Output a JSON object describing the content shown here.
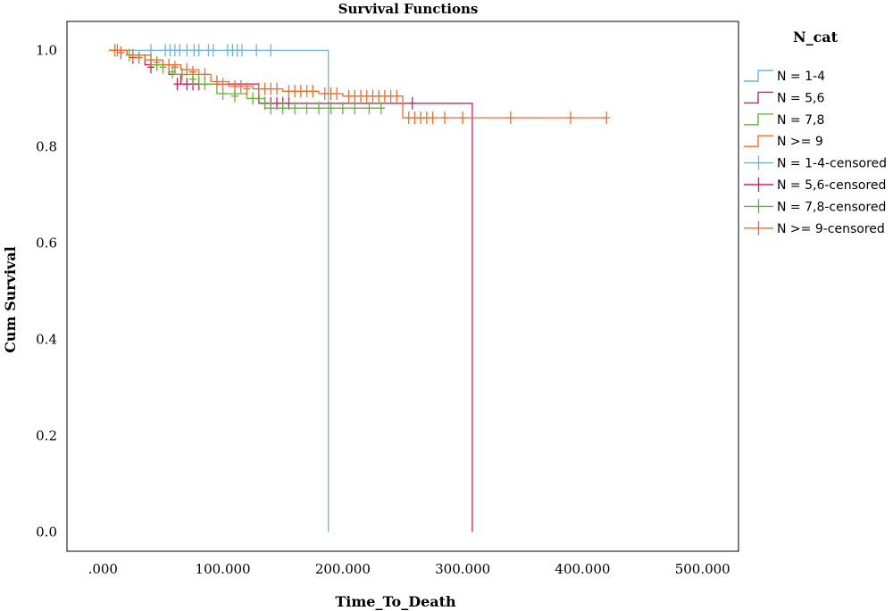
{
  "chart_data": {
    "type": "line",
    "title": "Survival Functions",
    "xlabel": "Time_To_Death",
    "ylabel": "Cum Survival",
    "xlim": [
      -30000,
      530000
    ],
    "ylim": [
      -0.04,
      1.06
    ],
    "x_ticks": [
      0,
      100000,
      200000,
      300000,
      400000,
      500000
    ],
    "x_tick_labels": [
      ".000",
      "100.000",
      "200.000",
      "300.000",
      "400.000",
      "500.000"
    ],
    "y_ticks": [
      0.0,
      0.2,
      0.4,
      0.6,
      0.8,
      1.0
    ],
    "y_tick_labels": [
      "0.0",
      "0.2",
      "0.4",
      "0.6",
      "0.8",
      "1.0"
    ],
    "grid": false,
    "legend_title": "N_cat",
    "legend_position": "right",
    "series": [
      {
        "name": "N = 1-4",
        "color": "#6fb2e0",
        "steps": [
          [
            5000,
            1.0
          ],
          [
            188000,
            1.0
          ],
          [
            188000,
            0.0
          ]
        ],
        "censored": [
          [
            40000,
            1.0
          ],
          [
            52000,
            1.0
          ],
          [
            56000,
            1.0
          ],
          [
            60000,
            1.0
          ],
          [
            64000,
            1.0
          ],
          [
            70000,
            1.0
          ],
          [
            76000,
            1.0
          ],
          [
            80000,
            1.0
          ],
          [
            88000,
            1.0
          ],
          [
            92000,
            1.0
          ],
          [
            104000,
            1.0
          ],
          [
            108000,
            1.0
          ],
          [
            112000,
            1.0
          ],
          [
            116000,
            1.0
          ],
          [
            128000,
            1.0
          ],
          [
            140000,
            1.0
          ]
        ]
      },
      {
        "name": "N = 5,6",
        "color": "#d2205c",
        "steps": [
          [
            5000,
            1.0
          ],
          [
            20000,
            0.99
          ],
          [
            35000,
            0.97
          ],
          [
            55000,
            0.95
          ],
          [
            65000,
            0.93
          ],
          [
            130000,
            0.93
          ],
          [
            130000,
            0.89
          ],
          [
            255000,
            0.89
          ],
          [
            255000,
            0.89
          ],
          [
            308000,
            0.89
          ],
          [
            308000,
            0.0
          ]
        ],
        "censored": [
          [
            15000,
            0.995
          ],
          [
            25000,
            0.985
          ],
          [
            40000,
            0.965
          ],
          [
            62000,
            0.93
          ],
          [
            70000,
            0.93
          ],
          [
            75000,
            0.93
          ],
          [
            80000,
            0.93
          ],
          [
            135000,
            0.89
          ],
          [
            140000,
            0.89
          ],
          [
            145000,
            0.89
          ],
          [
            150000,
            0.89
          ],
          [
            155000,
            0.89
          ],
          [
            258000,
            0.89
          ]
        ]
      },
      {
        "name": "N = 7,8",
        "color": "#5cbd2c",
        "steps": [
          [
            5000,
            1.0
          ],
          [
            20000,
            0.99
          ],
          [
            40000,
            0.97
          ],
          [
            60000,
            0.95
          ],
          [
            80000,
            0.93
          ],
          [
            95000,
            0.91
          ],
          [
            120000,
            0.9
          ],
          [
            135000,
            0.88
          ],
          [
            235000,
            0.88
          ]
        ],
        "censored": [
          [
            12000,
            1.0
          ],
          [
            22000,
            0.99
          ],
          [
            30000,
            0.985
          ],
          [
            45000,
            0.97
          ],
          [
            50000,
            0.965
          ],
          [
            58000,
            0.955
          ],
          [
            66000,
            0.95
          ],
          [
            75000,
            0.94
          ],
          [
            85000,
            0.93
          ],
          [
            100000,
            0.91
          ],
          [
            110000,
            0.905
          ],
          [
            125000,
            0.9
          ],
          [
            140000,
            0.88
          ],
          [
            150000,
            0.88
          ],
          [
            160000,
            0.88
          ],
          [
            170000,
            0.88
          ],
          [
            180000,
            0.88
          ],
          [
            190000,
            0.88
          ],
          [
            200000,
            0.88
          ],
          [
            210000,
            0.88
          ],
          [
            222000,
            0.88
          ],
          [
            232000,
            0.88
          ]
        ]
      },
      {
        "name": "N >= 9",
        "color": "#f26d2b",
        "steps": [
          [
            5000,
            1.0
          ],
          [
            20000,
            0.99
          ],
          [
            35000,
            0.98
          ],
          [
            50000,
            0.97
          ],
          [
            65000,
            0.96
          ],
          [
            80000,
            0.95
          ],
          [
            90000,
            0.935
          ],
          [
            105000,
            0.925
          ],
          [
            125000,
            0.92
          ],
          [
            150000,
            0.915
          ],
          [
            180000,
            0.91
          ],
          [
            200000,
            0.905
          ],
          [
            250000,
            0.905
          ],
          [
            250000,
            0.86
          ],
          [
            420000,
            0.86
          ]
        ],
        "censored": [
          [
            10000,
            1.0
          ],
          [
            15000,
            0.995
          ],
          [
            25000,
            0.99
          ],
          [
            30000,
            0.985
          ],
          [
            40000,
            0.98
          ],
          [
            45000,
            0.975
          ],
          [
            55000,
            0.97
          ],
          [
            60000,
            0.965
          ],
          [
            70000,
            0.96
          ],
          [
            75000,
            0.955
          ],
          [
            85000,
            0.95
          ],
          [
            95000,
            0.935
          ],
          [
            100000,
            0.93
          ],
          [
            110000,
            0.925
          ],
          [
            115000,
            0.925
          ],
          [
            120000,
            0.92
          ],
          [
            130000,
            0.92
          ],
          [
            135000,
            0.92
          ],
          [
            140000,
            0.92
          ],
          [
            145000,
            0.92
          ],
          [
            155000,
            0.915
          ],
          [
            160000,
            0.915
          ],
          [
            165000,
            0.915
          ],
          [
            170000,
            0.915
          ],
          [
            175000,
            0.915
          ],
          [
            185000,
            0.91
          ],
          [
            190000,
            0.91
          ],
          [
            195000,
            0.91
          ],
          [
            205000,
            0.905
          ],
          [
            210000,
            0.905
          ],
          [
            215000,
            0.905
          ],
          [
            220000,
            0.905
          ],
          [
            225000,
            0.905
          ],
          [
            230000,
            0.905
          ],
          [
            235000,
            0.905
          ],
          [
            240000,
            0.905
          ],
          [
            245000,
            0.905
          ],
          [
            255000,
            0.86
          ],
          [
            260000,
            0.86
          ],
          [
            265000,
            0.86
          ],
          [
            270000,
            0.86
          ],
          [
            275000,
            0.86
          ],
          [
            285000,
            0.86
          ],
          [
            300000,
            0.86
          ],
          [
            340000,
            0.86
          ],
          [
            390000,
            0.86
          ],
          [
            420000,
            0.86
          ]
        ]
      },
      {
        "name": "N = 1-4-censored",
        "color": "#6fb2e0",
        "marker": "plus"
      },
      {
        "name": "N = 5,6-censored",
        "color": "#d2205c",
        "marker": "plus"
      },
      {
        "name": "N = 7,8-censored",
        "color": "#5cbd2c",
        "marker": "plus"
      },
      {
        "name": "N >= 9-censored",
        "color": "#f26d2b",
        "marker": "plus"
      }
    ]
  }
}
